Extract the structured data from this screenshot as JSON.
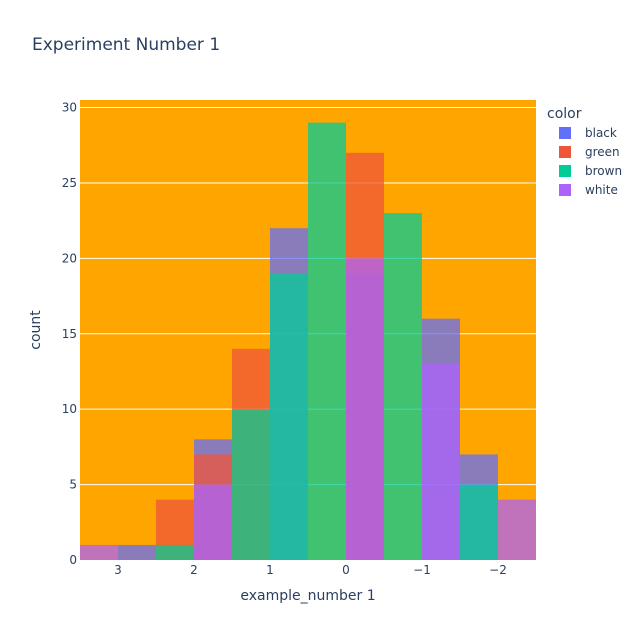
{
  "chart_data": {
    "type": "bar",
    "title": "Experiment Number 1",
    "xlabel": "example_number 1",
    "ylabel": "count",
    "plot_bgcolor": "#FFA500",
    "gridcolor": "#ffffff",
    "xaxis_reversed": true,
    "xlim": [
      3.5,
      -2.5
    ],
    "ylim": [
      0,
      30.5
    ],
    "x_ticks": [
      3,
      2,
      1,
      0,
      -1,
      -2
    ],
    "x_tick_labels": [
      "3",
      "2",
      "1",
      "0",
      "−1",
      "−2"
    ],
    "y_ticks": [
      0,
      5,
      10,
      15,
      20,
      25,
      30
    ],
    "bin_edges": [
      3.5,
      3.0,
      2.5,
      2.0,
      1.5,
      1.0,
      0.5,
      0.0,
      -0.5,
      -1.0,
      -1.5,
      -2.0,
      -2.5
    ],
    "barmode": "overlay",
    "opacity": 0.75,
    "legend": {
      "title": "color",
      "placement": "top-right",
      "items": [
        {
          "name": "black",
          "color": "#636efa"
        },
        {
          "name": "green",
          "color": "#EF553B"
        },
        {
          "name": "brown",
          "color": "#00cc96"
        },
        {
          "name": "white",
          "color": "#ab63fa"
        }
      ]
    },
    "series": [
      {
        "name": "black",
        "color": "#636efa",
        "values": [
          0,
          1,
          0,
          8,
          0,
          22,
          0,
          19,
          0,
          16,
          7,
          0
        ]
      },
      {
        "name": "green",
        "color": "#EF553B",
        "values": [
          0,
          0,
          4,
          7,
          14,
          0,
          0,
          27,
          0,
          0,
          0,
          0
        ]
      },
      {
        "name": "brown",
        "color": "#00cc96",
        "values": [
          0,
          0,
          1,
          0,
          10,
          19,
          29,
          0,
          23,
          0,
          5,
          0
        ]
      },
      {
        "name": "white",
        "color": "#ab63fa",
        "values": [
          1,
          0,
          0,
          5,
          0,
          0,
          0,
          20,
          0,
          13,
          0,
          4
        ]
      }
    ]
  }
}
